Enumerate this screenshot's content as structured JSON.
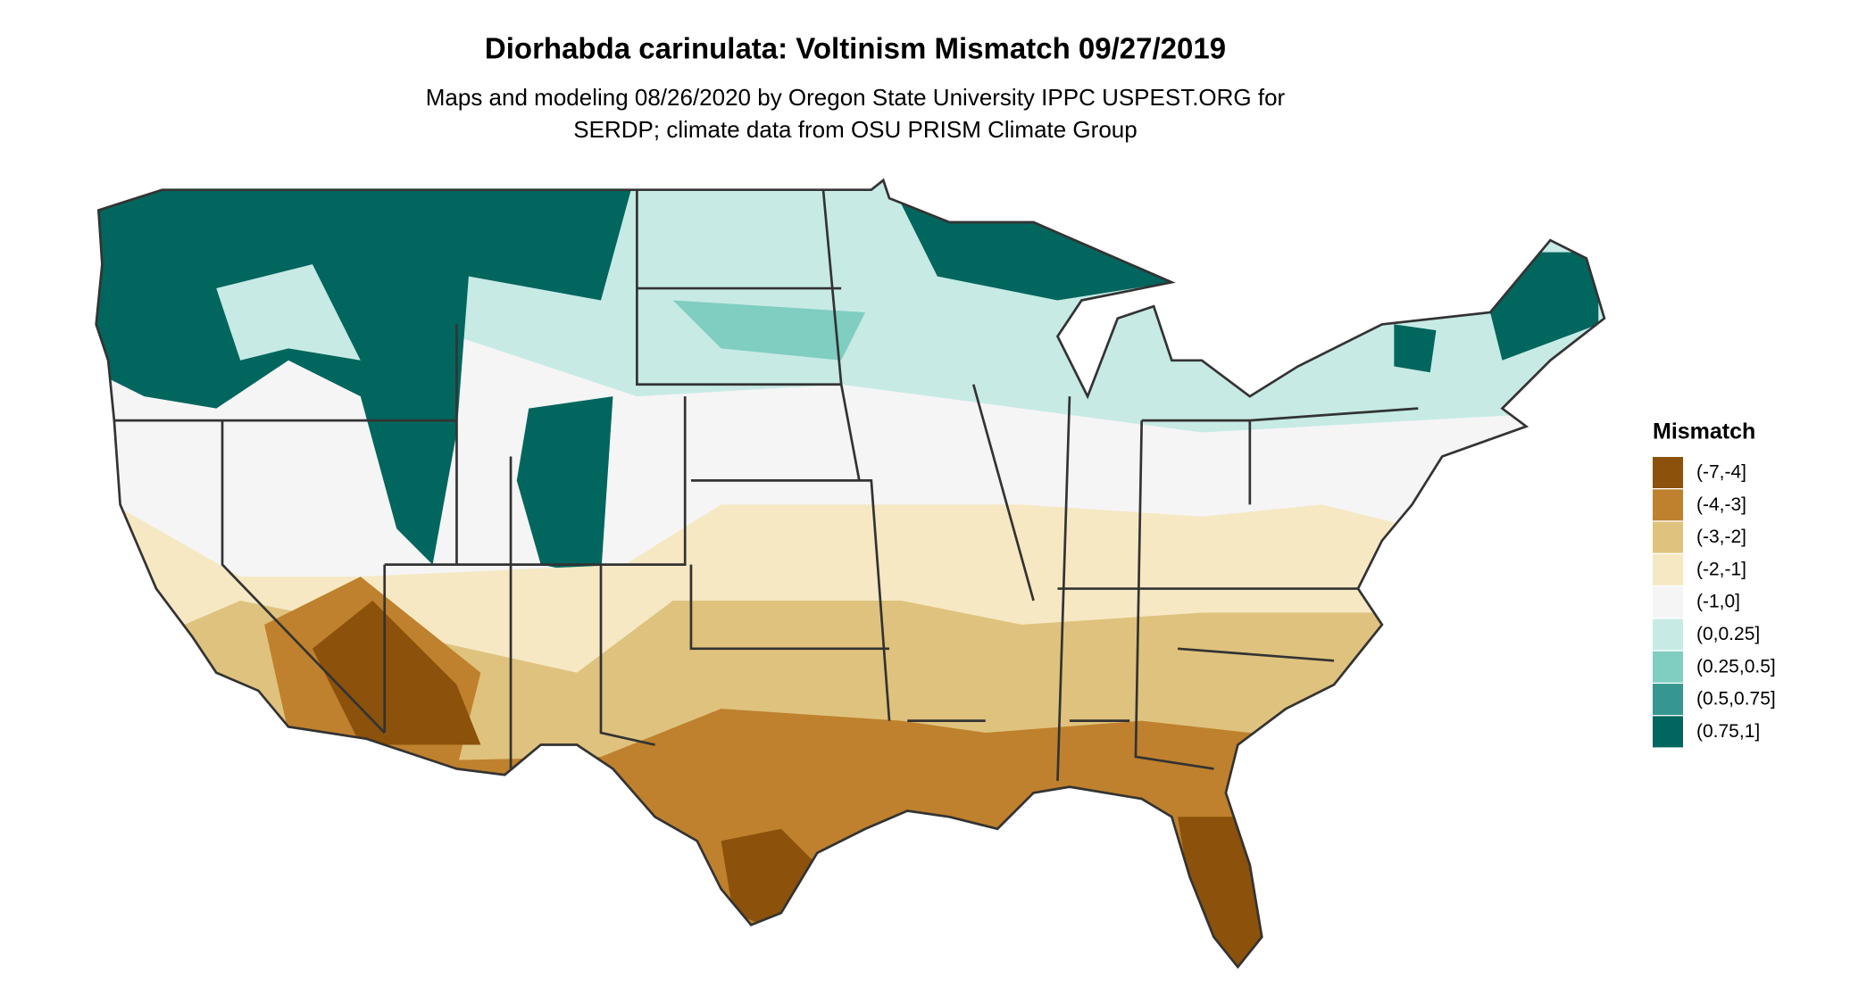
{
  "title": "Diorhabda carinulata: Voltinism Mismatch 09/27/2019",
  "subtitle": [
    "Maps and modeling 08/26/2020 by Oregon State University IPPC USPEST.ORG for",
    "SERDP; climate data from OSU PRISM Climate Group"
  ],
  "legend": {
    "title": "Mismatch",
    "items": [
      {
        "label": "(-7,-4]",
        "color": "#8c510a"
      },
      {
        "label": "(-4,-3]",
        "color": "#bf812d"
      },
      {
        "label": "(-3,-2]",
        "color": "#dfc27d"
      },
      {
        "label": "(-2,-1]",
        "color": "#f6e8c3"
      },
      {
        "label": "(-1,0]",
        "color": "#f5f5f5"
      },
      {
        "label": "(0,0.25]",
        "color": "#c7eae5"
      },
      {
        "label": "(0.25,0.5]",
        "color": "#80cdc1"
      },
      {
        "label": "(0.5,0.75]",
        "color": "#35978f"
      },
      {
        "label": "(0.75,1]",
        "color": "#01665e"
      }
    ]
  }
}
